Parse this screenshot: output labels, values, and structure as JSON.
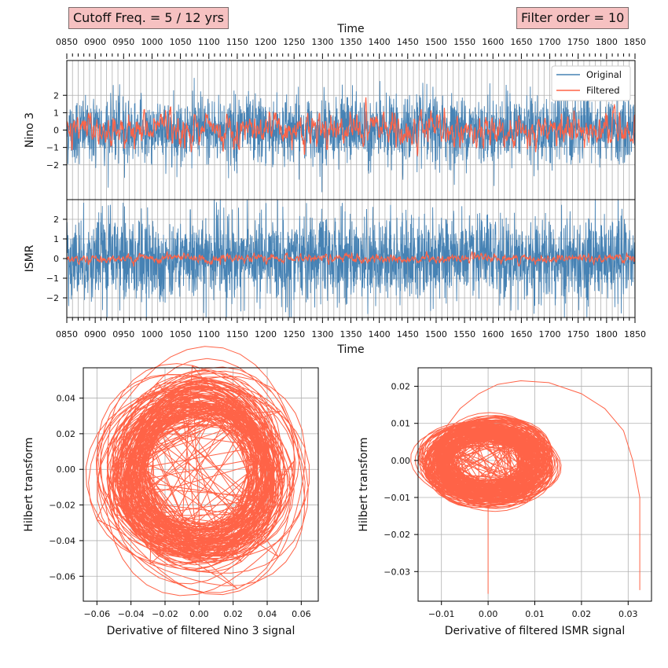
{
  "annotations": {
    "cutoff": "Cutoff Freq. = 5 / 12 yrs",
    "order": "Filter order = 10"
  },
  "colors": {
    "original": "#4682b4",
    "filtered": "#ff6347",
    "grid": "#b0b0b0"
  },
  "chart_data": [
    {
      "type": "line",
      "panel": "top",
      "xlabel": "Time",
      "ylabel": "Nino 3",
      "xlim": [
        850,
        1850
      ],
      "ylim": [
        -4,
        4
      ],
      "xticks": [
        "0850",
        "0900",
        "0950",
        "1000",
        "1050",
        "1100",
        "1150",
        "1200",
        "1250",
        "1300",
        "1350",
        "1400",
        "1450",
        "1500",
        "1550",
        "1600",
        "1650",
        "1700",
        "1750",
        "1800",
        "1850"
      ],
      "yticks": [
        -2,
        -1,
        0,
        1,
        2
      ],
      "legend": {
        "position": "top-right",
        "entries": [
          "Original",
          "Filtered"
        ]
      },
      "grid": true,
      "series": [
        {
          "name": "Original",
          "description": "monthly noise, range approx -3.5 to 3.0"
        },
        {
          "name": "Filtered",
          "description": "low-pass, range approx -2.0 to 2.0"
        }
      ]
    },
    {
      "type": "line",
      "panel": "middle",
      "xlabel": "Time",
      "ylabel": "ISMR",
      "xlim": [
        850,
        1850
      ],
      "ylim": [
        -3,
        3
      ],
      "xticks": [
        "0850",
        "0900",
        "0950",
        "1000",
        "1050",
        "1100",
        "1150",
        "1200",
        "1250",
        "1300",
        "1350",
        "1400",
        "1450",
        "1500",
        "1550",
        "1600",
        "1650",
        "1700",
        "1750",
        "1800",
        "1850"
      ],
      "yticks": [
        -2,
        -1,
        0,
        1,
        2
      ],
      "grid": true,
      "series": [
        {
          "name": "Original",
          "description": "dense noise, range approx -3 to 3"
        },
        {
          "name": "Filtered",
          "description": "smooth, range approx -0.5 to 0.5"
        }
      ]
    },
    {
      "type": "scatter",
      "panel": "bottom-left",
      "xlabel": "Derivative of filtered Nino 3 signal",
      "ylabel": "Hilbert transform",
      "xlim": [
        -0.068,
        0.07
      ],
      "ylim": [
        -0.074,
        0.057
      ],
      "xticks": [
        "−0.06",
        "−0.04",
        "−0.02",
        "0.00",
        "0.02",
        "0.04",
        "0.06"
      ],
      "xtick_values": [
        -0.06,
        -0.04,
        -0.02,
        0,
        0.02,
        0.04,
        0.06
      ],
      "yticks": [
        "−0.06",
        "−0.04",
        "−0.02",
        "0.00",
        "0.02",
        "0.04"
      ],
      "ytick_values": [
        -0.06,
        -0.04,
        -0.02,
        0,
        0.02,
        0.04
      ],
      "grid": true,
      "description": "phase portrait loops centered near (0,0), radius up to ~0.065"
    },
    {
      "type": "scatter",
      "panel": "bottom-right",
      "xlabel": "Derivative of filtered ISMR signal",
      "ylabel": "Hilbert transform",
      "xlim": [
        -0.015,
        0.035
      ],
      "ylim": [
        -0.038,
        0.025
      ],
      "xticks": [
        "−0.01",
        "0.00",
        "0.01",
        "0.02",
        "0.03"
      ],
      "xtick_values": [
        -0.01,
        0,
        0.01,
        0.02,
        0.03
      ],
      "yticks": [
        "−0.03",
        "−0.02",
        "−0.01",
        "0.00",
        "0.01",
        "0.02"
      ],
      "ytick_values": [
        -0.03,
        -0.02,
        -0.01,
        0,
        0.01,
        0.02
      ],
      "grid": true,
      "description": "dense loops near (0,0) radius ~0.012 with transient arc to (0.0325,-0.035)",
      "transient": [
        [
          0.0325,
          -0.035
        ],
        [
          0.0325,
          -0.01
        ],
        [
          0.031,
          0.0
        ],
        [
          0.029,
          0.008
        ],
        [
          0.025,
          0.014
        ],
        [
          0.02,
          0.018
        ],
        [
          0.013,
          0.021
        ],
        [
          0.007,
          0.0215
        ],
        [
          0.002,
          0.0205
        ],
        [
          -0.002,
          0.018
        ],
        [
          -0.006,
          0.014
        ],
        [
          -0.009,
          0.009
        ]
      ],
      "spike": [
        [
          0.0,
          -0.036
        ],
        [
          0.0,
          -0.012
        ]
      ]
    }
  ]
}
